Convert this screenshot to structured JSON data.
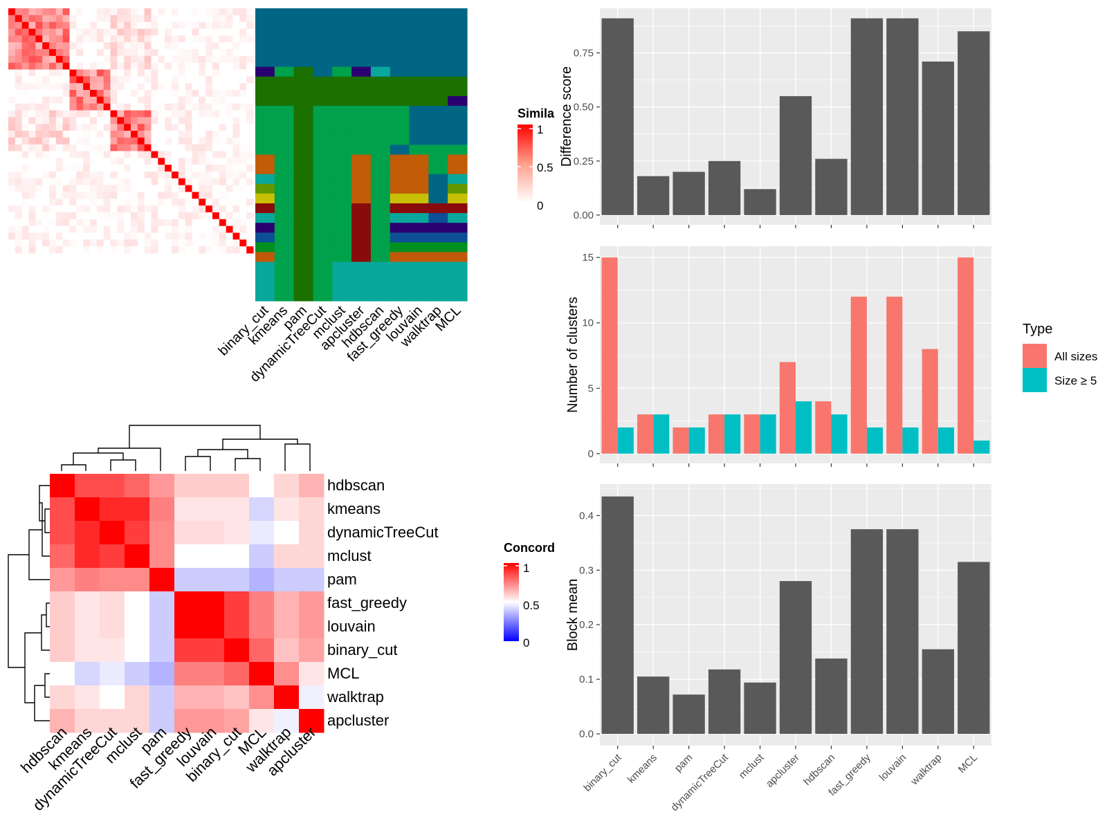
{
  "colors": {
    "panel_bg": "#ebebeb",
    "grid": "#ffffff",
    "bar": "#595959",
    "all_sizes": "#f8766d",
    "size_ge5": "#00bfc4",
    "sim_high": "#ff0000",
    "sim_low": "#ffffff",
    "conc_high": "#ff0000",
    "conc_mid": "#ffffff",
    "conc_low": "#0000ff"
  },
  "similarity_heatmap": {
    "legend_title": "Simila",
    "legend_ticks": [
      "1",
      "0.5",
      "0"
    ],
    "column_labels": [
      "binary_cut",
      "kmeans",
      "pam",
      "dynamicTreeCut",
      "mclust",
      "apcluster",
      "hdbscan",
      "fast_greedy",
      "louvain",
      "walktrap",
      "MCL"
    ]
  },
  "concordance_heatmap": {
    "legend_title": "Concord",
    "legend_ticks": [
      "1",
      "0.5",
      "0"
    ],
    "order": [
      "hdbscan",
      "kmeans",
      "dynamicTreeCut",
      "mclust",
      "pam",
      "fast_greedy",
      "louvain",
      "binary_cut",
      "MCL",
      "walktrap",
      "apcluster"
    ],
    "values": [
      [
        1.0,
        0.85,
        0.85,
        0.8,
        0.7,
        0.6,
        0.6,
        0.6,
        0.5,
        0.58,
        0.65
      ],
      [
        0.85,
        1.0,
        0.92,
        0.92,
        0.75,
        0.55,
        0.55,
        0.55,
        0.42,
        0.55,
        0.58
      ],
      [
        0.85,
        0.92,
        1.0,
        0.88,
        0.73,
        0.57,
        0.57,
        0.55,
        0.46,
        0.5,
        0.58
      ],
      [
        0.8,
        0.92,
        0.88,
        1.0,
        0.73,
        0.5,
        0.5,
        0.5,
        0.4,
        0.58,
        0.58
      ],
      [
        0.7,
        0.75,
        0.73,
        0.73,
        1.0,
        0.4,
        0.4,
        0.4,
        0.35,
        0.4,
        0.4
      ],
      [
        0.6,
        0.55,
        0.57,
        0.5,
        0.4,
        1.0,
        1.0,
        0.88,
        0.75,
        0.65,
        0.7
      ],
      [
        0.6,
        0.55,
        0.57,
        0.5,
        0.4,
        1.0,
        1.0,
        0.88,
        0.75,
        0.65,
        0.7
      ],
      [
        0.6,
        0.55,
        0.55,
        0.5,
        0.4,
        0.88,
        0.88,
        1.0,
        0.8,
        0.62,
        0.68
      ],
      [
        0.5,
        0.42,
        0.46,
        0.4,
        0.35,
        0.75,
        0.75,
        0.8,
        1.0,
        0.72,
        0.55
      ],
      [
        0.58,
        0.55,
        0.5,
        0.58,
        0.4,
        0.65,
        0.65,
        0.62,
        0.72,
        1.0,
        0.47
      ],
      [
        0.65,
        0.58,
        0.58,
        0.58,
        0.4,
        0.7,
        0.7,
        0.68,
        0.55,
        0.47,
        1.0
      ]
    ]
  },
  "chart_data": [
    {
      "type": "bar",
      "categories": [
        "binary_cut",
        "kmeans",
        "pam",
        "dynamicTreeCut",
        "mclust",
        "apcluster",
        "hdbscan",
        "fast_greedy",
        "louvain",
        "walktrap",
        "MCL"
      ],
      "values": [
        0.91,
        0.18,
        0.2,
        0.25,
        0.12,
        0.55,
        0.26,
        0.91,
        0.91,
        0.71,
        0.85
      ],
      "ylabel": "Difference score",
      "ylim": [
        0,
        0.95
      ],
      "yticks": [
        0,
        0.25,
        0.5,
        0.75
      ],
      "ytick_labels": [
        "0.00",
        "0.25",
        "0.50",
        "0.75"
      ]
    },
    {
      "type": "bar",
      "categories": [
        "binary_cut",
        "kmeans",
        "pam",
        "dynamicTreeCut",
        "mclust",
        "apcluster",
        "hdbscan",
        "fast_greedy",
        "louvain",
        "walktrap",
        "MCL"
      ],
      "series": [
        {
          "name": "All sizes",
          "values": [
            15,
            3,
            2,
            3,
            3,
            7,
            4,
            12,
            12,
            8,
            15
          ]
        },
        {
          "name": "Size ≥ 5",
          "values": [
            2,
            3,
            2,
            3,
            3,
            4,
            3,
            2,
            2,
            2,
            1
          ]
        }
      ],
      "ylabel": "Number of clusters",
      "ylim": [
        0,
        15.75
      ],
      "yticks": [
        0,
        5,
        10,
        15
      ],
      "ytick_labels": [
        "0",
        "5",
        "10",
        "15"
      ],
      "legend_title": "Type"
    },
    {
      "type": "bar",
      "categories": [
        "binary_cut",
        "kmeans",
        "pam",
        "dynamicTreeCut",
        "mclust",
        "apcluster",
        "hdbscan",
        "fast_greedy",
        "louvain",
        "walktrap",
        "MCL"
      ],
      "values": [
        0.435,
        0.105,
        0.072,
        0.118,
        0.094,
        0.28,
        0.138,
        0.375,
        0.375,
        0.155,
        0.315
      ],
      "ylabel": "Block mean",
      "ylim": [
        0,
        0.455
      ],
      "yticks": [
        0,
        0.1,
        0.2,
        0.3,
        0.4
      ],
      "ytick_labels": [
        "0.0",
        "0.1",
        "0.2",
        "0.3",
        "0.4"
      ]
    }
  ]
}
